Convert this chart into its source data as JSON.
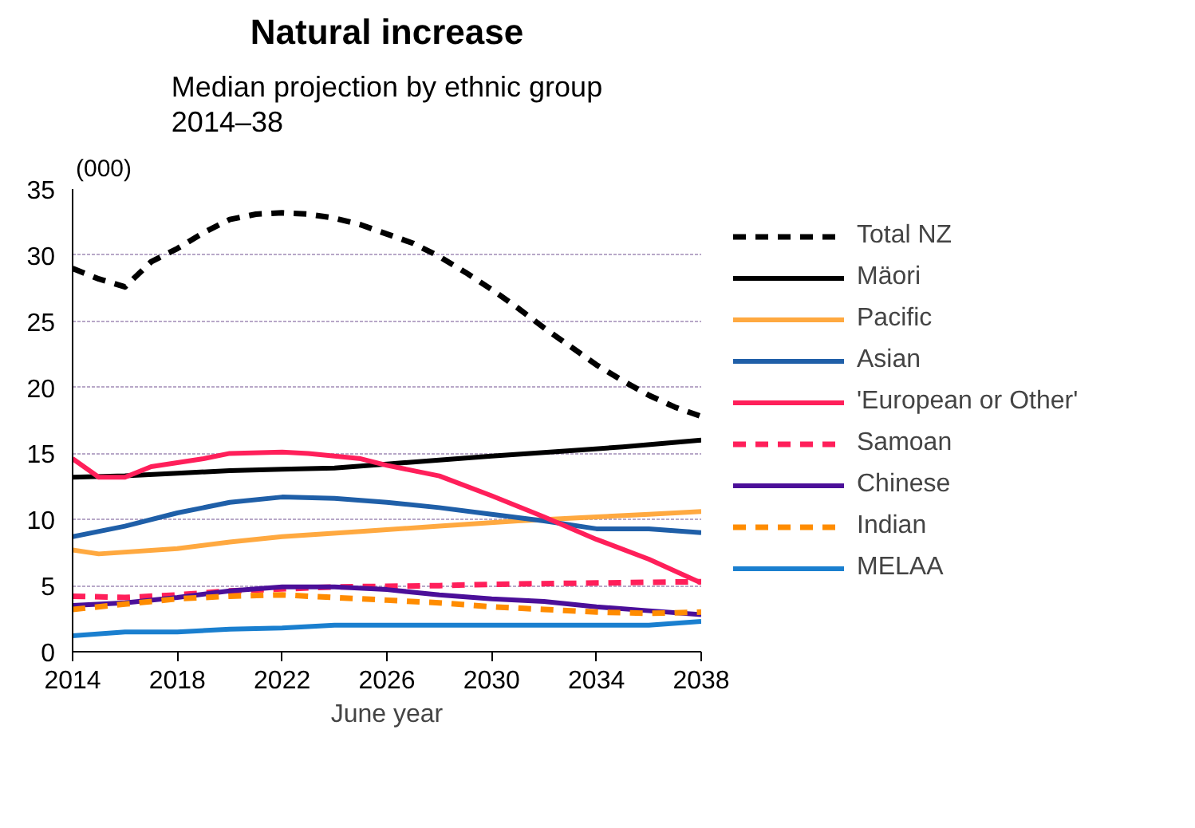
{
  "chart_data": {
    "type": "line",
    "title": "Natural increase",
    "subtitle": "Median projection by ethnic group\n2014–38",
    "xlabel": "June year",
    "annotations": [
      "(000)"
    ],
    "xlim": [
      2014,
      2038
    ],
    "xticks": [
      2014,
      2018,
      2022,
      2026,
      2030,
      2034,
      2038
    ],
    "ylim": [
      0,
      35
    ],
    "yticks": [
      0,
      5,
      10,
      15,
      20,
      25,
      30,
      35
    ],
    "grid": "y",
    "legend": "right",
    "marker": "none",
    "series": [
      {
        "name": "Total NZ",
        "color": "#000000",
        "line_style": "dashed",
        "x": [
          2014,
          2015,
          2016,
          2017,
          2018,
          2019,
          2020,
          2021,
          2022,
          2023,
          2024,
          2025,
          2026,
          2027,
          2028,
          2029,
          2030,
          2031,
          2032,
          2033,
          2034,
          2035,
          2036,
          2037,
          2038
        ],
        "values": [
          29,
          28.2,
          27.6,
          29.5,
          30.5,
          31.7,
          32.7,
          33.1,
          33.2,
          33.1,
          32.8,
          32.3,
          31.6,
          30.9,
          29.9,
          28.7,
          27.4,
          26,
          24.5,
          23.1,
          21.7,
          20.5,
          19.4,
          18.5,
          17.8
        ]
      },
      {
        "name": "Mäori",
        "color": "#000000",
        "line_style": "solid",
        "x": [
          2014,
          2016,
          2018,
          2020,
          2022,
          2024,
          2026,
          2028,
          2030,
          2033,
          2035,
          2038
        ],
        "values": [
          13.2,
          13.3,
          13.5,
          13.7,
          13.8,
          13.9,
          14.2,
          14.5,
          14.8,
          15.2,
          15.5,
          16
        ]
      },
      {
        "name": "Pacific",
        "color": "#ffa940",
        "line_style": "solid",
        "x": [
          2014,
          2015,
          2018,
          2020,
          2022,
          2025,
          2028,
          2031,
          2034,
          2036,
          2038
        ],
        "values": [
          7.7,
          7.4,
          7.8,
          8.3,
          8.7,
          9.1,
          9.5,
          9.9,
          10.2,
          10.4,
          10.6
        ]
      },
      {
        "name": "Asian",
        "color": "#1f5fa8",
        "line_style": "solid",
        "x": [
          2014,
          2016,
          2018,
          2020,
          2022,
          2024,
          2026,
          2028,
          2030,
          2032,
          2034,
          2036,
          2038
        ],
        "values": [
          8.7,
          9.5,
          10.5,
          11.3,
          11.7,
          11.6,
          11.3,
          10.9,
          10.4,
          9.9,
          9.3,
          9.3,
          9.0
        ]
      },
      {
        "name": "'European or Other'",
        "color": "#ff1f5a",
        "line_style": "solid",
        "x": [
          2014,
          2015,
          2016,
          2017,
          2019,
          2020,
          2022,
          2023,
          2025,
          2026,
          2028,
          2030,
          2032,
          2034,
          2036,
          2038
        ],
        "values": [
          14.6,
          13.2,
          13.2,
          14,
          14.6,
          15,
          15.1,
          15.0,
          14.6,
          14.1,
          13.3,
          11.8,
          10.2,
          8.5,
          7,
          5.2
        ]
      },
      {
        "name": "Samoan",
        "color": "#ff1f5a",
        "line_style": "dashed",
        "x": [
          2014,
          2016,
          2018,
          2020,
          2024,
          2028,
          2030,
          2034,
          2038
        ],
        "values": [
          4.2,
          4.1,
          4.3,
          4.6,
          4.9,
          5.0,
          5.1,
          5.2,
          5.3
        ]
      },
      {
        "name": "Chinese",
        "color": "#4b0f99",
        "line_style": "solid",
        "x": [
          2014,
          2016,
          2018,
          2020,
          2022,
          2024,
          2026,
          2028,
          2030,
          2032,
          2034,
          2036,
          2038
        ],
        "values": [
          3.5,
          3.7,
          4.1,
          4.6,
          4.9,
          4.9,
          4.7,
          4.3,
          4.0,
          3.8,
          3.4,
          3.1,
          2.8
        ]
      },
      {
        "name": "Indian",
        "color": "#ff8c00",
        "line_style": "dashed",
        "x": [
          2014,
          2016,
          2018,
          2020,
          2022,
          2024,
          2026,
          2028,
          2030,
          2032,
          2034,
          2036,
          2038
        ],
        "values": [
          3.2,
          3.6,
          4.0,
          4.2,
          4.3,
          4.1,
          3.9,
          3.7,
          3.4,
          3.2,
          3.0,
          2.9,
          3.0
        ]
      },
      {
        "name": "MELAA",
        "color": "#1a7fcf",
        "line_style": "solid",
        "x": [
          2014,
          2016,
          2018,
          2020,
          2022,
          2024,
          2026,
          2030,
          2036,
          2038
        ],
        "values": [
          1.2,
          1.5,
          1.5,
          1.7,
          1.8,
          2.0,
          2.0,
          2.0,
          2.0,
          2.3
        ]
      }
    ]
  }
}
